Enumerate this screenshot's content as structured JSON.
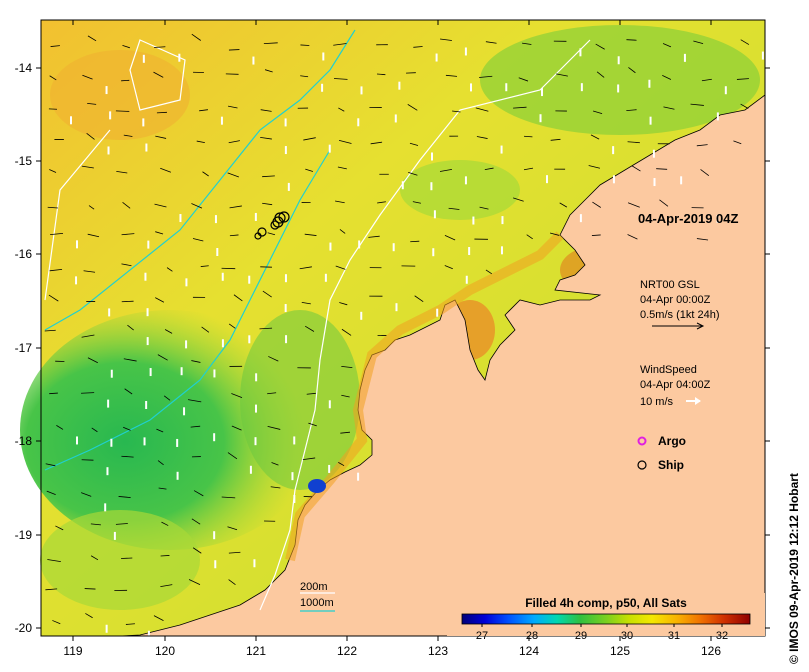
{
  "map": {
    "x_ticks": [
      "119",
      "120",
      "121",
      "122",
      "123",
      "124",
      "125",
      "126"
    ],
    "y_ticks": [
      "-14",
      "-15",
      "-16",
      "-17",
      "-18",
      "-19",
      "-20"
    ]
  },
  "timestamp": "04-Apr-2019 04Z",
  "current_info": {
    "title": "NRT00 GSL",
    "time": "04-Apr 00:00Z",
    "scale": "0.5m/s (1kt 24h)"
  },
  "wind_info": {
    "title": "WindSpeed",
    "time": "04-Apr 04:00Z",
    "scale": "10 m/s"
  },
  "legend": {
    "argo": "Argo",
    "ship": "Ship"
  },
  "contours": {
    "c200": "200m",
    "c1000": "1000m",
    "c200_color": "#ffffff",
    "c1000_color": "#20d0d0"
  },
  "colorbar": {
    "title": "Filled 4h comp, p50, All Sats",
    "labels": [
      "27",
      "28",
      "29",
      "30",
      "31",
      "32"
    ],
    "colors": [
      "#00007a",
      "#0000d8",
      "#0050ff",
      "#00aaff",
      "#00d8b0",
      "#30c040",
      "#7ad020",
      "#c8e000",
      "#f4e800",
      "#f8b000",
      "#f07000",
      "#d03000",
      "#900000"
    ]
  },
  "credit": "© IMOS 09-Apr-2019 12:12 Hobart",
  "colors": {
    "land": "#fcc9a0",
    "sea_yellow": "#e8e030",
    "sea_green": "#50c850"
  }
}
